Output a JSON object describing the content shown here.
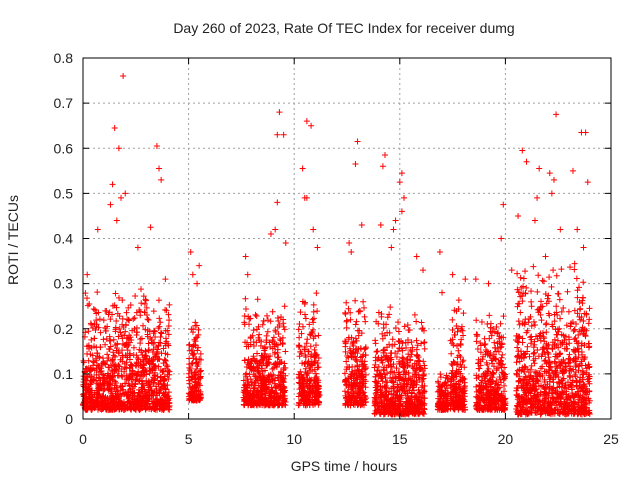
{
  "chart_data": {
    "type": "scatter",
    "title": "Day 260 of 2023, Rate Of TEC Index for receiver dumg",
    "xlabel": "GPS time / hours",
    "ylabel": "ROTI / TECUs",
    "xlim": [
      0,
      25
    ],
    "ylim": [
      0,
      0.8
    ],
    "x_ticks": [
      "0",
      "5",
      "10",
      "15",
      "20",
      "25"
    ],
    "y_ticks": [
      "0",
      "0.1",
      "0.2",
      "0.3",
      "0.4",
      "0.5",
      "0.6",
      "0.7",
      "0.8"
    ],
    "grid": true,
    "marker": "plus",
    "color": "#ff0000",
    "series": [
      {
        "clusters": [
          {
            "x": [
              0.0,
              4.1
            ],
            "y_core": [
              0.02,
              0.28
            ]
          },
          {
            "x": [
              5.0,
              5.6
            ],
            "y_core": [
              0.04,
              0.22
            ]
          },
          {
            "x": [
              7.6,
              9.6
            ],
            "y_core": [
              0.03,
              0.25
            ]
          },
          {
            "x": [
              10.2,
              11.2
            ],
            "y_core": [
              0.03,
              0.26
            ]
          },
          {
            "x": [
              12.4,
              13.4
            ],
            "y_core": [
              0.03,
              0.27
            ]
          },
          {
            "x": [
              13.8,
              16.2
            ],
            "y_core": [
              0.01,
              0.24
            ]
          },
          {
            "x": [
              16.8,
              17.3
            ],
            "y_core": [
              0.02,
              0.1
            ]
          },
          {
            "x": [
              17.4,
              18.1
            ],
            "y_core": [
              0.02,
              0.26
            ]
          },
          {
            "x": [
              18.6,
              20.0
            ],
            "y_core": [
              0.02,
              0.24
            ]
          },
          {
            "x": [
              20.5,
              24.0
            ],
            "y_core": [
              0.01,
              0.33
            ]
          }
        ],
        "points": [
          [
            1.9,
            0.76
          ],
          [
            1.5,
            0.645
          ],
          [
            1.7,
            0.6
          ],
          [
            3.5,
            0.605
          ],
          [
            9.3,
            0.68
          ],
          [
            10.6,
            0.66
          ],
          [
            10.8,
            0.65
          ],
          [
            9.2,
            0.63
          ],
          [
            9.5,
            0.63
          ],
          [
            10.4,
            0.555
          ],
          [
            22.4,
            0.675
          ],
          [
            23.6,
            0.635
          ],
          [
            23.8,
            0.635
          ],
          [
            20.8,
            0.595
          ],
          [
            21.0,
            0.57
          ],
          [
            21.6,
            0.555
          ],
          [
            22.1,
            0.545
          ],
          [
            22.3,
            0.53
          ],
          [
            23.2,
            0.55
          ],
          [
            13.0,
            0.615
          ],
          [
            12.9,
            0.565
          ],
          [
            14.3,
            0.585
          ],
          [
            14.2,
            0.56
          ],
          [
            15.1,
            0.545
          ],
          [
            15.0,
            0.525
          ],
          [
            3.6,
            0.555
          ],
          [
            3.7,
            0.53
          ],
          [
            1.4,
            0.52
          ],
          [
            1.8,
            0.49
          ],
          [
            2.0,
            0.5
          ],
          [
            1.3,
            0.475
          ],
          [
            10.5,
            0.49
          ],
          [
            10.6,
            0.49
          ],
          [
            9.2,
            0.48
          ],
          [
            15.2,
            0.49
          ],
          [
            15.1,
            0.46
          ],
          [
            19.9,
            0.475
          ],
          [
            21.5,
            0.49
          ],
          [
            22.2,
            0.5
          ],
          [
            23.9,
            0.525
          ],
          [
            12.6,
            0.39
          ],
          [
            13.2,
            0.43
          ],
          [
            14.1,
            0.43
          ],
          [
            14.8,
            0.44
          ],
          [
            14.7,
            0.42
          ],
          [
            16.9,
            0.37
          ],
          [
            17.5,
            0.32
          ],
          [
            17.0,
            0.28
          ],
          [
            19.8,
            0.4
          ],
          [
            20.6,
            0.45
          ],
          [
            21.4,
            0.44
          ],
          [
            22.6,
            0.42
          ],
          [
            23.4,
            0.42
          ],
          [
            3.2,
            0.425
          ],
          [
            1.6,
            0.44
          ],
          [
            0.7,
            0.42
          ],
          [
            8.9,
            0.41
          ],
          [
            9.1,
            0.42
          ],
          [
            10.9,
            0.42
          ],
          [
            5.1,
            0.37
          ],
          [
            5.2,
            0.32
          ],
          [
            5.5,
            0.34
          ],
          [
            5.4,
            0.3
          ],
          [
            7.7,
            0.36
          ],
          [
            7.8,
            0.32
          ],
          [
            9.6,
            0.39
          ],
          [
            11.1,
            0.38
          ],
          [
            16.1,
            0.33
          ],
          [
            18.1,
            0.31
          ],
          [
            18.6,
            0.31
          ],
          [
            19.2,
            0.3
          ],
          [
            20.3,
            0.33
          ],
          [
            12.7,
            0.37
          ],
          [
            14.6,
            0.38
          ],
          [
            15.8,
            0.36
          ],
          [
            23.7,
            0.38
          ],
          [
            0.2,
            0.32
          ],
          [
            2.6,
            0.38
          ],
          [
            3.9,
            0.31
          ],
          [
            21.9,
            0.36
          ]
        ]
      }
    ]
  }
}
